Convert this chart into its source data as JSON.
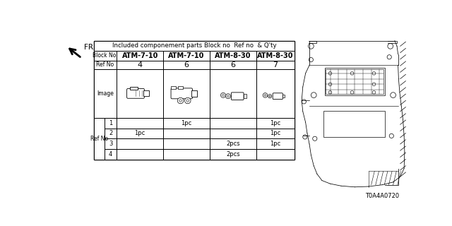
{
  "title": "Included componement parts Block no  Ref no  & Q'ty",
  "block_no_label": "Block No.",
  "ref_no_label": "Ref No",
  "columns": [
    "ATM-7-10",
    "ATM-7-10",
    "ATM-8-30",
    "ATM-8-30"
  ],
  "ref_no_row": [
    "4",
    "6",
    "6",
    "7"
  ],
  "quantity_rows": [
    {
      "ref": "1",
      "vals": [
        "",
        "1pc",
        "",
        "1pc"
      ]
    },
    {
      "ref": "2",
      "vals": [
        "1pc",
        "",
        "",
        "1pc"
      ]
    },
    {
      "ref": "3",
      "vals": [
        "",
        "",
        "2pcs",
        "1pc"
      ]
    },
    {
      "ref": "4",
      "vals": [
        "",
        "",
        "2pcs",
        ""
      ]
    }
  ],
  "bg_color": "#ffffff",
  "part_code": "T0A4A0720",
  "fr_label": "FR.",
  "image_row_label": "Image",
  "ref_no_side_label": "Ref No"
}
